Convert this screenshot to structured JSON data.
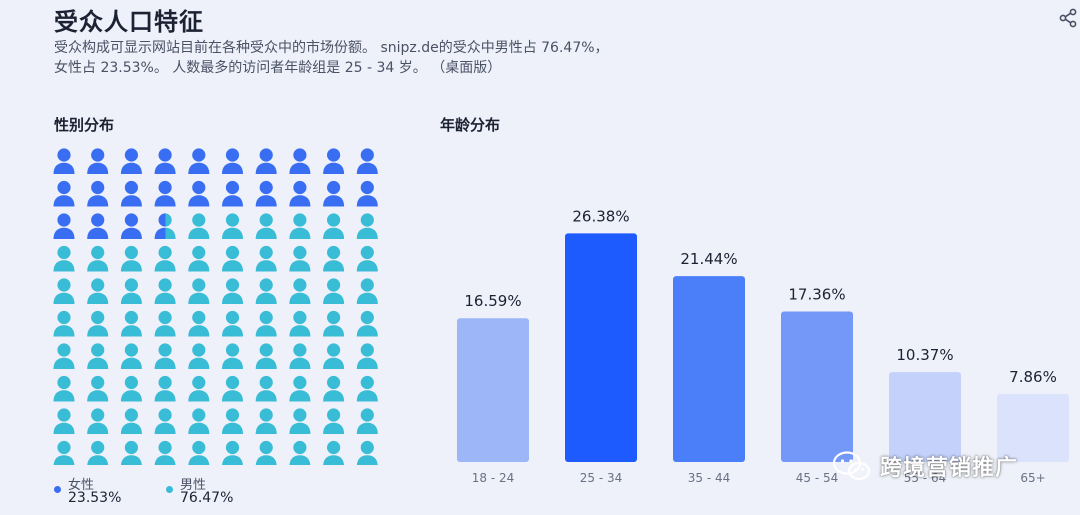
{
  "header": {
    "title": "受众人口特征",
    "description": "受众构成可显示网站目前在各种受众中的市场份额。 snipz.de的受众中男性占 76.47%，女性占 23.53%。 人数最多的访问者年龄组是 25 - 34 岁。 （桌面版）"
  },
  "icons": {
    "share": "share-icon",
    "person": "person-icon",
    "wechat": "wechat-icon"
  },
  "gender": {
    "title": "性别分布",
    "female": {
      "label": "女性",
      "value": "23.53%",
      "color": "#3a6ef2"
    },
    "male": {
      "label": "男性",
      "value": "76.47%",
      "color": "#39bcd6"
    }
  },
  "age": {
    "title": "年龄分布"
  },
  "chart_data": [
    {
      "type": "bar",
      "title": "年龄分布",
      "categories": [
        "18 - 24",
        "25 - 34",
        "35 - 44",
        "45 - 54",
        "55 - 64",
        "65+"
      ],
      "values": [
        16.59,
        26.38,
        21.44,
        17.36,
        10.37,
        7.86
      ],
      "value_labels": [
        "16.59%",
        "26.38%",
        "21.44%",
        "17.36%",
        "10.37%",
        "7.86%"
      ],
      "colors": [
        "#9cb6f8",
        "#1e5bff",
        "#4b7ffa",
        "#7498f8",
        "#c3d1fb",
        "#dbe3fc"
      ],
      "ylim": [
        0,
        30
      ],
      "grid": false
    },
    {
      "type": "pictogram",
      "title": "性别分布",
      "categories": [
        "女性",
        "男性"
      ],
      "values": [
        23.53,
        76.47
      ],
      "total_icons": 100,
      "colors": [
        "#3a6ef2",
        "#39bcd6"
      ]
    }
  ],
  "watermark": {
    "text": "跨境营销推广"
  }
}
